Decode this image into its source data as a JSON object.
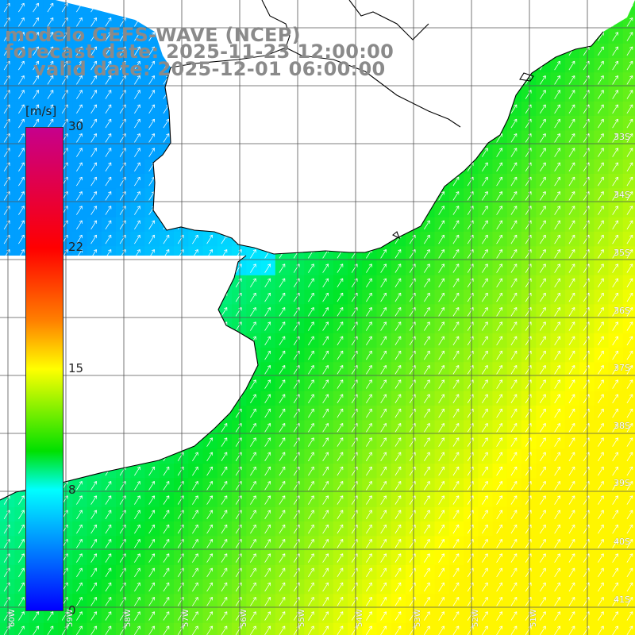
{
  "title": {
    "line1": "modelo GEFS-WAVE (NCEP)",
    "line2": "forecast date: 2025-11-23 12:00:00",
    "line3": "valid date: 2025-12-01 06:00:00"
  },
  "colorbar": {
    "unit": "[m/s]",
    "ticks": [
      "30",
      "22",
      "15",
      "8",
      "0"
    ],
    "tick_values": [
      30,
      22,
      15,
      8,
      0
    ],
    "colors": [
      "#c6008c",
      "#ff0000",
      "#ff8000",
      "#ffff00",
      "#00e000",
      "#00ffff",
      "#0000ff"
    ]
  },
  "lat_labels": [
    "33S",
    "34S",
    "35S",
    "36S",
    "37S",
    "38S",
    "39S",
    "40S",
    "41S"
  ],
  "lon_labels": [
    "60W",
    "59W",
    "58W",
    "57W",
    "56W",
    "55W",
    "54W",
    "53W",
    "52W",
    "51W"
  ],
  "map_extent": {
    "lon_min": -60.0,
    "lon_max": -49.1,
    "lat_min": -41.2,
    "lat_max": -30.4
  },
  "colors": {
    "land": "#ffffff",
    "grid": "#555555",
    "coast": "#000000",
    "arrow": "#ffffff"
  }
}
